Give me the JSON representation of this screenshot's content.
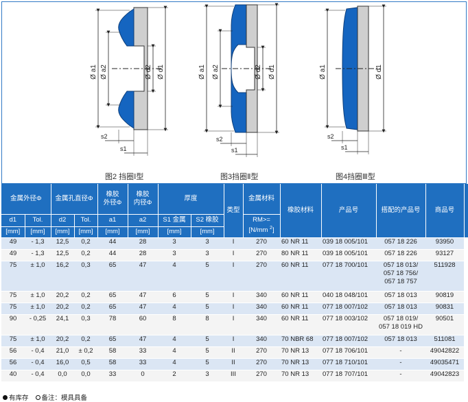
{
  "figures": [
    {
      "caption": "图2 挡圈Ⅰ型",
      "labels": {
        "a1": "Ø a1",
        "a2": "Ø a2",
        "d2": "Ø d2",
        "d1": "Ø d1",
        "s2": "s2",
        "s1": "s1"
      }
    },
    {
      "caption": "图3挡圈Ⅱ型",
      "labels": {
        "a1": "Ø a1",
        "a2": "Ø a2",
        "d2": "Ø d2",
        "d1": "Ø d1",
        "s2": "s2",
        "s1": "s1"
      }
    },
    {
      "caption": "图4挡圈Ⅲ型",
      "labels": {
        "a1": "Ø a1",
        "d1": "Ø d1",
        "s2": "s2",
        "s1": "s1"
      }
    }
  ],
  "table": {
    "header": {
      "metal_od": "金属外径Φ",
      "metal_id": "金属孔直径Φ",
      "rubber_od_line1": "橡胶",
      "rubber_od_line2": "外径Φ",
      "rubber_id_line1": "橡胶",
      "rubber_id_line2": "内径Φ",
      "thickness": "厚度",
      "type": "类型",
      "metal_material": "金属材料",
      "rubber_material": "橡胶材料",
      "product_no": "产品号",
      "matching_product": "搭配的产品号",
      "item_no": "商品号",
      "d1": "d1",
      "tol1": "Tol.",
      "d2": "d2",
      "tol2": "Tol.",
      "a1": "a1",
      "a2": "a2",
      "s1": "S1 金属",
      "s2": "S2 橡胶",
      "rm_line1": "RM>=",
      "rm_line2": "[N/mm ",
      "rm_sup": "2",
      "rm_line2_end": "]",
      "unit": "[mm]"
    },
    "rows": [
      {
        "d1": "49",
        "tol1": "- 1,3",
        "d2": "12,5",
        "tol2": "0,2",
        "a1": "44",
        "a2": "28",
        "s1": "3",
        "s2": "3",
        "type": "I",
        "rm": "270",
        "rubber": "60 NR 11",
        "product": "039 18 005/101",
        "matching": [
          "057 18 226"
        ],
        "item": "93950",
        "stock": "dot"
      },
      {
        "d1": "49",
        "tol1": "- 1,3",
        "d2": "12,5",
        "tol2": "0,2",
        "a1": "44",
        "a2": "28",
        "s1": "3",
        "s2": "3",
        "type": "I",
        "rm": "270",
        "rubber": "80 NR 11",
        "product": "039 18 005/101",
        "matching": [
          "057 18 226"
        ],
        "item": "93127",
        "stock": "ring"
      },
      {
        "d1": "75",
        "tol1": "± 1,0",
        "d2": "16,2",
        "tol2": "0,3",
        "a1": "65",
        "a2": "47",
        "s1": "4",
        "s2": "5",
        "type": "I",
        "rm": "270",
        "rubber": "60 NR 11",
        "product": "077 18 700/101",
        "matching": [
          "057 18 013/",
          "057 18 756/",
          "057 18 757"
        ],
        "item": "511928",
        "stock": "dot"
      },
      {
        "d1": "75",
        "tol1": "± 1,0",
        "d2": "20,2",
        "tol2": "0,2",
        "a1": "65",
        "a2": "47",
        "s1": "6",
        "s2": "5",
        "type": "I",
        "rm": "340",
        "rubber": "60 NR 11",
        "product": "040 18 048/101",
        "matching": [
          "057 18 013"
        ],
        "item": "90819",
        "stock": "ring"
      },
      {
        "d1": "75",
        "tol1": "± 1,0",
        "d2": "20,2",
        "tol2": "0,2",
        "a1": "65",
        "a2": "47",
        "s1": "4",
        "s2": "5",
        "type": "I",
        "rm": "340",
        "rubber": "60 NR 11",
        "product": "077 18 007/102",
        "matching": [
          "057 18 013"
        ],
        "item": "90831",
        "stock": "dot"
      },
      {
        "d1": "90",
        "tol1": "- 0,25",
        "d2": "24,1",
        "tol2": "0,3",
        "a1": "78",
        "a2": "60",
        "s1": "8",
        "s2": "8",
        "type": "I",
        "rm": "340",
        "rubber": "60 NR 11",
        "product": "077 18 003/102",
        "matching": [
          "057 18 019/",
          "057 18 019 HD"
        ],
        "item": "90501",
        "stock": "ring"
      },
      {
        "d1": "75",
        "tol1": "± 1,0",
        "d2": "20,2",
        "tol2": "0,2",
        "a1": "65",
        "a2": "47",
        "s1": "4",
        "s2": "5",
        "type": "I",
        "rm": "340",
        "rubber": "70 NBR 68",
        "product": "077 18 007/102",
        "matching": [
          "057 18 013"
        ],
        "item": "511081",
        "stock": "ring"
      },
      {
        "d1": "56",
        "tol1": "- 0,4",
        "d2": "21,0",
        "tol2": "± 0,2",
        "a1": "58",
        "a2": "33",
        "s1": "4",
        "s2": "5",
        "type": "II",
        "rm": "270",
        "rubber": "70 NR 13",
        "product": "077 18 706/101",
        "matching": [
          "-"
        ],
        "item": "49042822",
        "stock": "ring"
      },
      {
        "d1": "56",
        "tol1": "- 0,4",
        "d2": "16,0",
        "tol2": "0,5",
        "a1": "58",
        "a2": "33",
        "s1": "4",
        "s2": "5",
        "type": "II",
        "rm": "270",
        "rubber": "70 NR 13",
        "product": "077 18 710/101",
        "matching": [
          "-"
        ],
        "item": "49035471",
        "stock": "dot"
      },
      {
        "d1": "40",
        "tol1": "- 0,4",
        "d2": "0,0",
        "tol2": "0,0",
        "a1": "33",
        "a2": "0",
        "s1": "2",
        "s2": "3",
        "type": "III",
        "rm": "270",
        "rubber": "70 NR 13",
        "product": "077 18 707/101",
        "matching": [
          "-"
        ],
        "item": "49042823",
        "stock": "ring"
      }
    ]
  },
  "legend": {
    "in_stock": "有库存",
    "note": "备注：模具具备"
  },
  "colors": {
    "header_blue": "#1f6fc0",
    "rubber_blue": "#1565c0",
    "metal_gray": "#cfcfcf",
    "row_blue": "#dbe6f4",
    "row_gray": "#f4f4f4"
  }
}
